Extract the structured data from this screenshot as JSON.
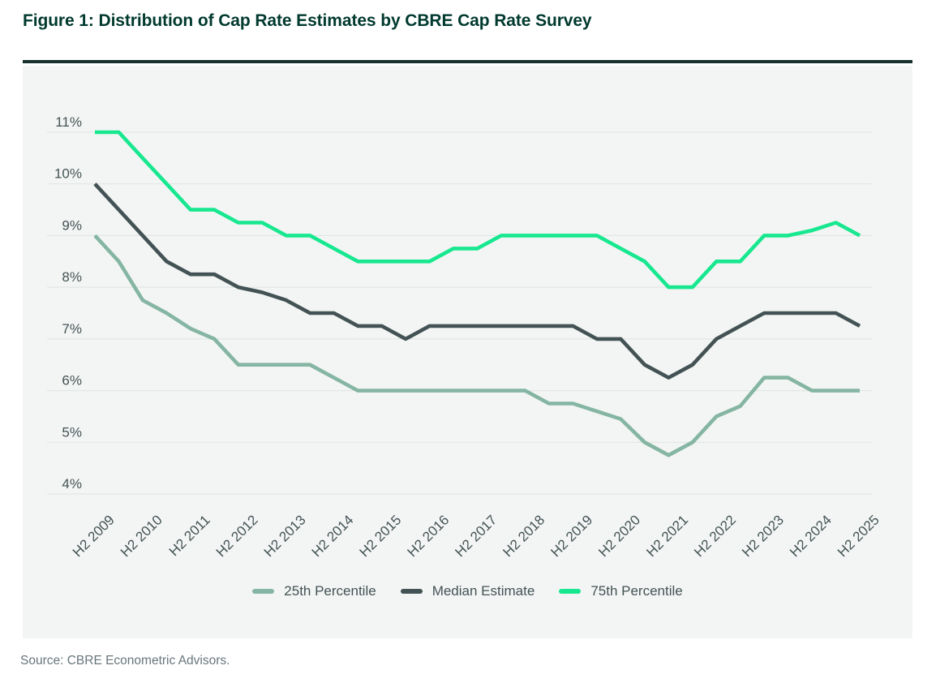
{
  "title": "Figure 1: Distribution of Cap Rate Estimates by CBRE Cap Rate Survey",
  "source": "Source: CBRE Econometric Advisors.",
  "colors": {
    "accent_green": "#17E88F",
    "sage": "#85B5A3",
    "dark": "#435254",
    "title_green": "#00392E",
    "rule": "#16302D",
    "panel_bg": "#F3F5F4",
    "grid": "#E1E6E4",
    "axis_text": "#435254",
    "source_text": "#68767B"
  },
  "chart_data": {
    "type": "line",
    "title": "Figure 1: Distribution of Cap Rate Estimates by CBRE Cap Rate Survey",
    "xlabel": "",
    "ylabel": "",
    "ylim": [
      4,
      11
    ],
    "grid": "horizontal",
    "legend_position": "bottom",
    "y_ticks": [
      "11%",
      "10%",
      "9%",
      "8%",
      "7%",
      "6%",
      "5%",
      "4%"
    ],
    "x_ticks_shown": [
      "H2 2009",
      "H2 2010",
      "H2 2011",
      "H2 2012",
      "H2 2013",
      "H2 2014",
      "H2 2015",
      "H2 2016",
      "H2 2017",
      "H2 2018",
      "H2 2019",
      "H2 2020",
      "H2 2021",
      "H2 2022",
      "H2 2023",
      "H2 2024",
      "H2 2025"
    ],
    "x": [
      "H2 2009",
      "H1 2010",
      "H2 2010",
      "H1 2011",
      "H2 2011",
      "H1 2012",
      "H2 2012",
      "H1 2013",
      "H2 2013",
      "H1 2014",
      "H2 2014",
      "H1 2015",
      "H2 2015",
      "H1 2016",
      "H2 2016",
      "H1 2017",
      "H2 2017",
      "H1 2018",
      "H2 2018",
      "H1 2019",
      "H2 2019",
      "H1 2020",
      "H2 2020",
      "H1 2021",
      "H2 2021",
      "H1 2022",
      "H2 2022",
      "H1 2023",
      "H2 2023",
      "H1 2024",
      "H2 2024",
      "H1 2025",
      "H2 2025"
    ],
    "series": [
      {
        "name": "25th Percentile",
        "color_key": "sage",
        "values": [
          9,
          8.5,
          7.75,
          7.5,
          7.2,
          7,
          6.5,
          6.5,
          6.5,
          6.5,
          6.25,
          6,
          6,
          6,
          6,
          6,
          6,
          6,
          6,
          5.75,
          5.75,
          5.6,
          5.45,
          5,
          4.75,
          5,
          5.5,
          5.7,
          6.25,
          6.25,
          6,
          6,
          6
        ]
      },
      {
        "name": "Median Estimate",
        "color_key": "dark",
        "values": [
          10,
          9.5,
          9,
          8.5,
          8.25,
          8.25,
          8,
          7.9,
          7.75,
          7.5,
          7.5,
          7.25,
          7.25,
          7,
          7.25,
          7.25,
          7.25,
          7.25,
          7.25,
          7.25,
          7.25,
          7,
          7,
          6.5,
          6.25,
          6.5,
          7,
          7.25,
          7.5,
          7.5,
          7.5,
          7.5,
          7.25
        ]
      },
      {
        "name": "75th Percentile",
        "color_key": "accent_green",
        "values": [
          11,
          11,
          10.5,
          10,
          9.5,
          9.5,
          9.25,
          9.25,
          9,
          9,
          8.75,
          8.5,
          8.5,
          8.5,
          8.5,
          8.75,
          8.75,
          9,
          9,
          9,
          9,
          9,
          8.75,
          8.5,
          8,
          8,
          8.5,
          8.5,
          9,
          9,
          9.1,
          9.25,
          9
        ]
      }
    ]
  }
}
